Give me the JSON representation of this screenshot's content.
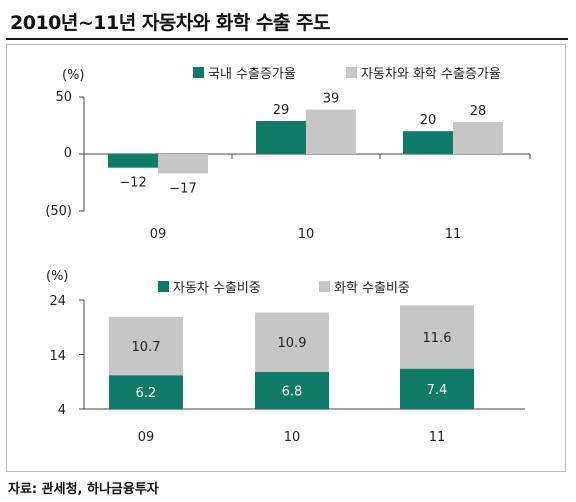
{
  "title": "2010년~11년 자동차와 화학 수출 주도",
  "source": "자료: 관세청, 하나금융투자",
  "colors": {
    "teal": "#0f7a66",
    "gray": "#c6c6c6",
    "axis": "#444444"
  },
  "chart_data": [
    {
      "type": "bar",
      "unit_label": "(%)",
      "categories": [
        "09",
        "10",
        "11"
      ],
      "series": [
        {
          "name": "국내 수출증가율",
          "values": [
            -12,
            29,
            20
          ],
          "labels": [
            "-12",
            "29",
            "20"
          ]
        },
        {
          "name": "자동차와 화학 수출증가율",
          "values": [
            -17,
            39,
            28
          ],
          "labels": [
            "-17",
            "39",
            "28"
          ]
        }
      ],
      "ylim": [
        -50,
        50
      ],
      "yticks": [
        50,
        0,
        -50
      ],
      "ytick_labels": [
        "50",
        "0",
        "(50)"
      ],
      "legend": "top",
      "grid": false
    },
    {
      "type": "bar",
      "stacked": true,
      "unit_label": "(%)",
      "categories": [
        "09",
        "10",
        "11"
      ],
      "series": [
        {
          "name": "자동차 수출비중",
          "values": [
            6.2,
            6.8,
            7.4
          ],
          "labels": [
            "6.2",
            "6.8",
            "7.4"
          ]
        },
        {
          "name": "화학 수출비중",
          "values": [
            10.7,
            10.9,
            11.6
          ],
          "labels": [
            "10.7",
            "10.9",
            "11.6"
          ]
        }
      ],
      "ylim": [
        4,
        24
      ],
      "yticks": [
        24,
        14,
        4
      ],
      "ytick_labels": [
        "24",
        "14",
        "4"
      ],
      "legend": "top",
      "grid": false
    }
  ]
}
